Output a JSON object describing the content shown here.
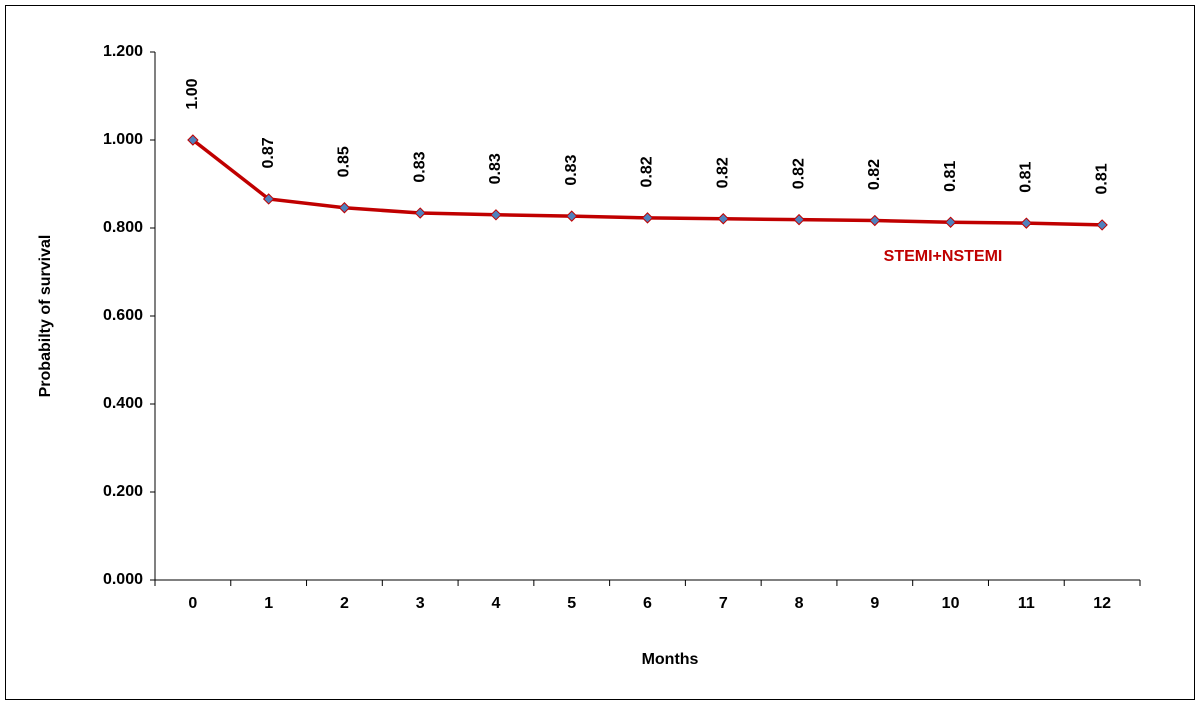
{
  "chart_data": {
    "type": "line",
    "x_label": "Months",
    "y_label": "Probabilty of survival",
    "categories": [
      "0",
      "1",
      "2",
      "3",
      "4",
      "5",
      "6",
      "7",
      "8",
      "9",
      "10",
      "11",
      "12"
    ],
    "series": [
      {
        "name": "STEMI+NSTEMI",
        "color": "#c00000",
        "marker_color": "#4f81bd",
        "values": [
          1.0,
          0.866,
          0.846,
          0.834,
          0.83,
          0.827,
          0.823,
          0.821,
          0.819,
          0.817,
          0.813,
          0.811,
          0.807
        ],
        "value_labels": [
          "1.00",
          "0.87",
          "0.85",
          "0.83",
          "0.83",
          "0.83",
          "0.82",
          "0.82",
          "0.82",
          "0.82",
          "0.81",
          "0.81",
          "0.81"
        ]
      }
    ],
    "ylim": [
      0,
      1.2
    ],
    "yticks": [
      {
        "value": 0,
        "label": "0.000"
      },
      {
        "value": 0.2,
        "label": "0.200"
      },
      {
        "value": 0.4,
        "label": "0.400"
      },
      {
        "value": 0.6,
        "label": "0.600"
      },
      {
        "value": 0.8,
        "label": "0.800"
      },
      {
        "value": 1.0,
        "label": "1.000"
      },
      {
        "value": 1.2,
        "label": "1.200"
      }
    ],
    "grid": false
  }
}
